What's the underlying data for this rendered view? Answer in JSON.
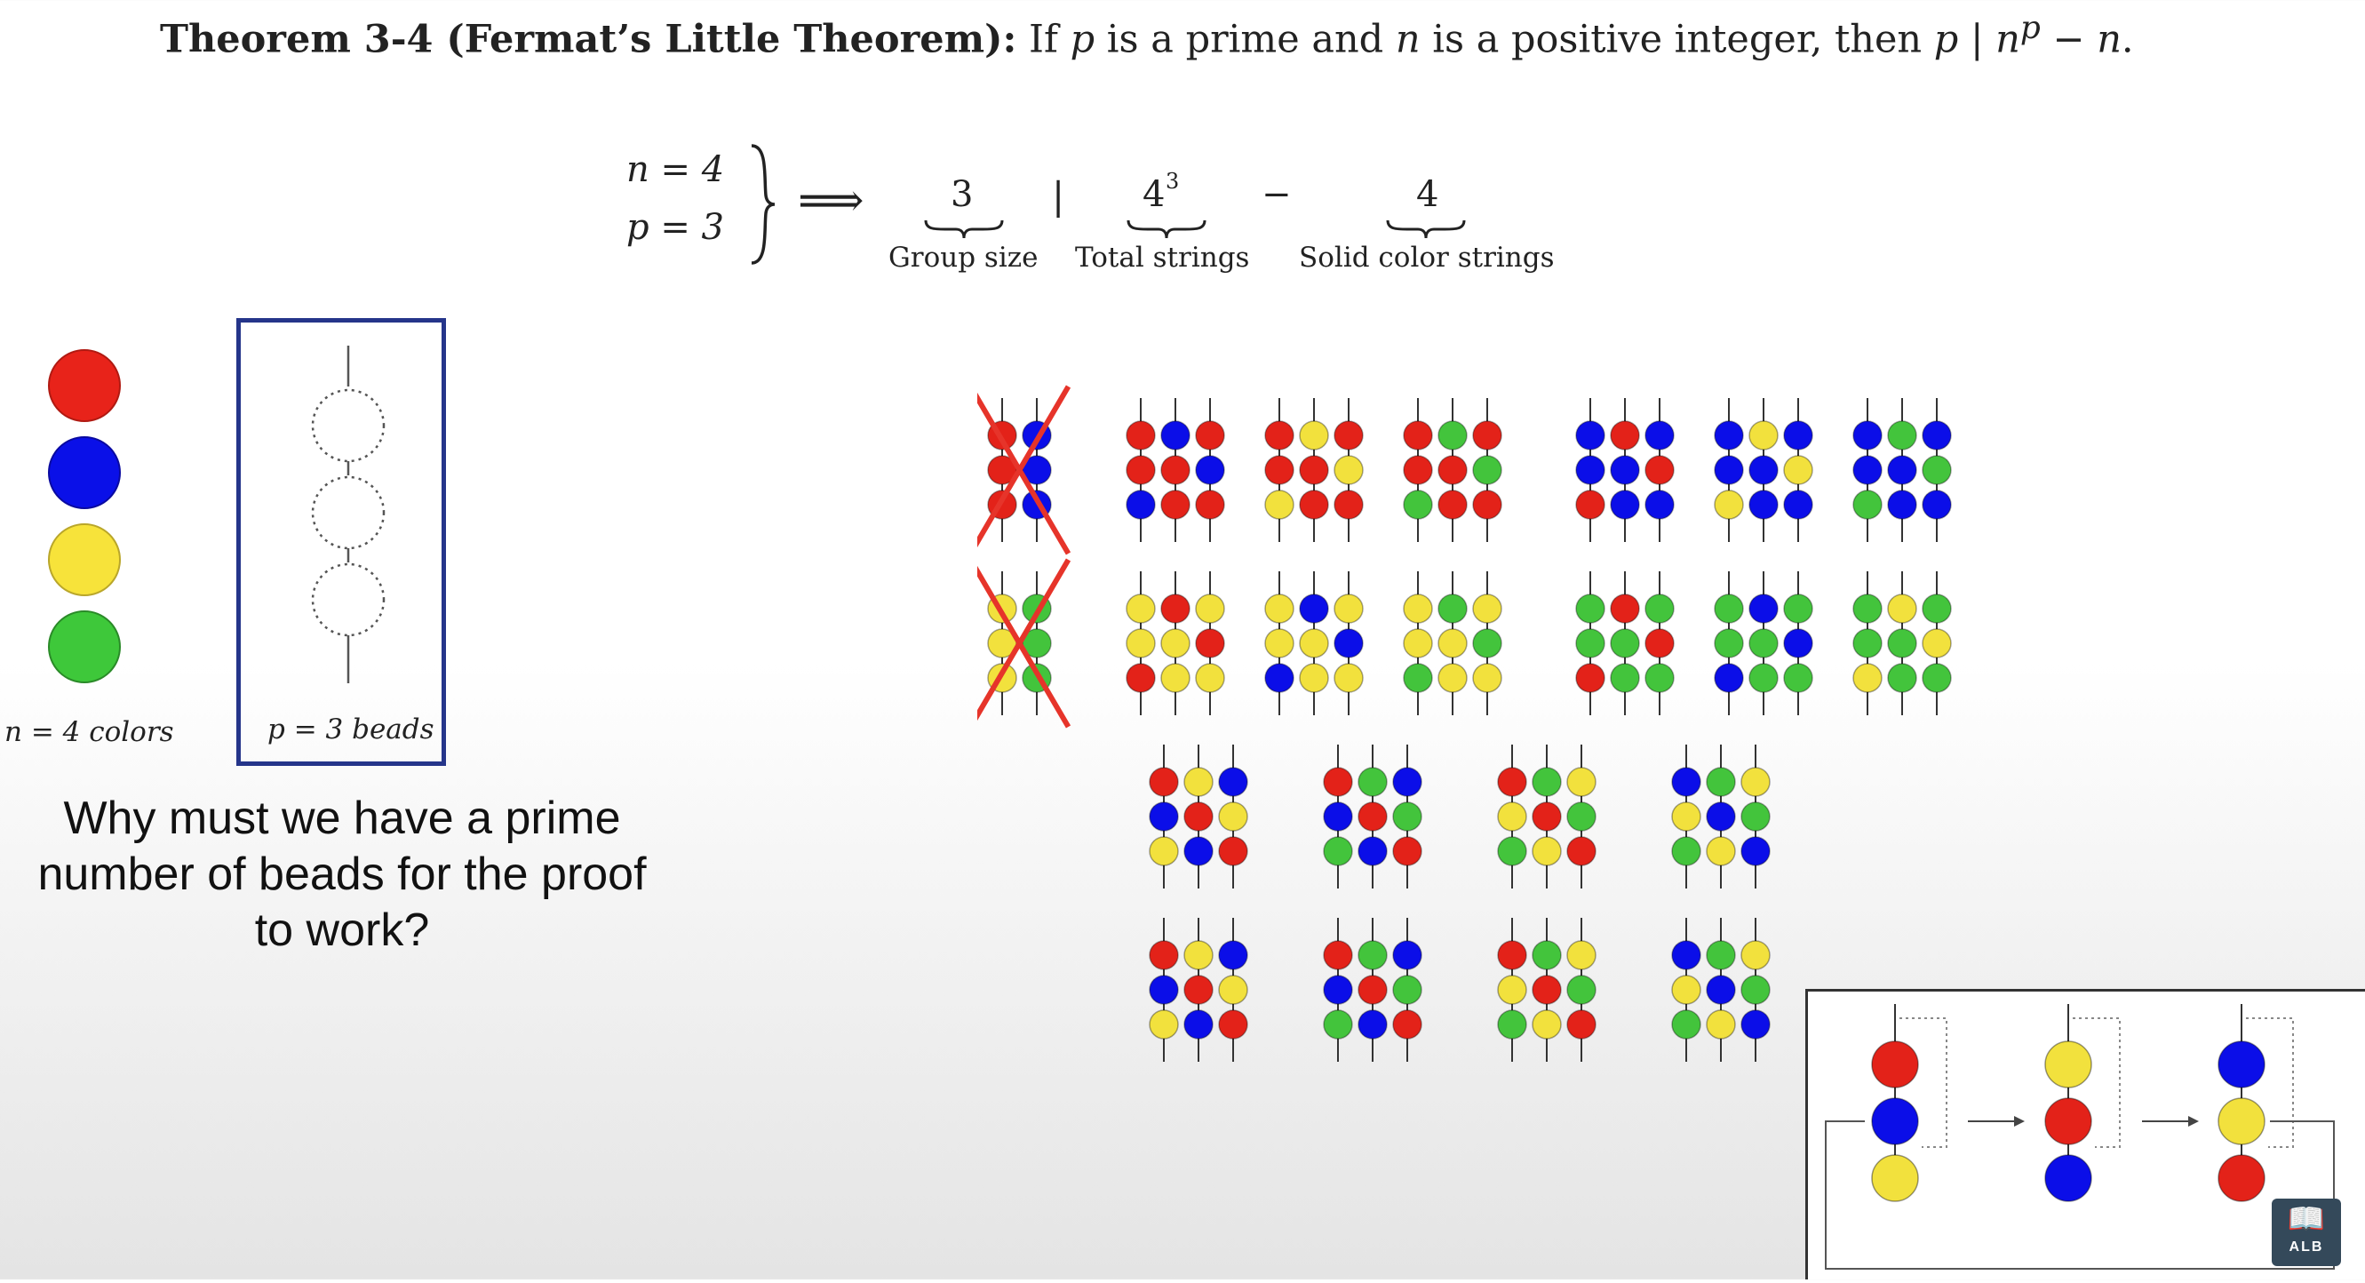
{
  "theorem": {
    "title": "Theorem 3-4 (Fermat’s Little Theorem):",
    "t1": "If",
    "p1": "p",
    "t2": "is a prime and",
    "n1": "n",
    "t3": "is a positive integer, then",
    "p2": "p",
    "bar": "|",
    "n2": "n",
    "sup": "p",
    "minus": "−",
    "n3": "n",
    "end": "."
  },
  "formula": {
    "n_eq": "n = 4",
    "p_eq": "p = 3",
    "implies": "⟹",
    "group_size_value": "3",
    "group_size_label": "Group size",
    "divides": "|",
    "total_base": "4",
    "total_exp": "3",
    "total_label": "Total strings",
    "minus": "−",
    "solid_value": "4",
    "solid_label": "Solid color strings"
  },
  "legend": {
    "colors_label": "n = 4 colors",
    "beads_label": "p = 3 beads",
    "palette": [
      "#e8231a",
      "#0a10e8",
      "#f7e33a",
      "#3ec83a"
    ]
  },
  "question": {
    "text": "Why must we have a prime number of beads for the proof to work?"
  },
  "bead_colors": {
    "R": "#e32219",
    "B": "#0b0ee8",
    "Y": "#f2e13d",
    "G": "#43c43c"
  },
  "bead_groups": [
    {
      "crossed": true,
      "strings": [
        [
          "R",
          "R",
          "R"
        ],
        [
          "B",
          "B",
          "B"
        ]
      ]
    },
    {
      "crossed": false,
      "strings": [
        [
          "R",
          "R",
          "B"
        ],
        [
          "B",
          "R",
          "R"
        ],
        [
          "R",
          "B",
          "R"
        ]
      ]
    },
    {
      "crossed": false,
      "strings": [
        [
          "R",
          "R",
          "Y"
        ],
        [
          "Y",
          "R",
          "R"
        ],
        [
          "R",
          "Y",
          "R"
        ]
      ]
    },
    {
      "crossed": false,
      "strings": [
        [
          "R",
          "R",
          "G"
        ],
        [
          "G",
          "R",
          "R"
        ],
        [
          "R",
          "G",
          "R"
        ]
      ]
    },
    {
      "crossed": false,
      "strings": [
        [
          "B",
          "B",
          "R"
        ],
        [
          "R",
          "B",
          "B"
        ],
        [
          "B",
          "R",
          "B"
        ]
      ]
    },
    {
      "crossed": false,
      "strings": [
        [
          "B",
          "B",
          "Y"
        ],
        [
          "Y",
          "B",
          "B"
        ],
        [
          "B",
          "Y",
          "B"
        ]
      ]
    },
    {
      "crossed": false,
      "strings": [
        [
          "B",
          "B",
          "G"
        ],
        [
          "G",
          "B",
          "B"
        ],
        [
          "B",
          "G",
          "B"
        ]
      ]
    },
    {
      "crossed": true,
      "strings": [
        [
          "Y",
          "Y",
          "Y"
        ],
        [
          "G",
          "G",
          "G"
        ]
      ]
    },
    {
      "crossed": false,
      "strings": [
        [
          "Y",
          "Y",
          "R"
        ],
        [
          "R",
          "Y",
          "Y"
        ],
        [
          "Y",
          "R",
          "Y"
        ]
      ]
    },
    {
      "crossed": false,
      "strings": [
        [
          "Y",
          "Y",
          "B"
        ],
        [
          "B",
          "Y",
          "Y"
        ],
        [
          "Y",
          "B",
          "Y"
        ]
      ]
    },
    {
      "crossed": false,
      "strings": [
        [
          "Y",
          "Y",
          "G"
        ],
        [
          "G",
          "Y",
          "Y"
        ],
        [
          "Y",
          "G",
          "Y"
        ]
      ]
    },
    {
      "crossed": false,
      "strings": [
        [
          "G",
          "G",
          "R"
        ],
        [
          "R",
          "G",
          "G"
        ],
        [
          "G",
          "R",
          "G"
        ]
      ]
    },
    {
      "crossed": false,
      "strings": [
        [
          "G",
          "G",
          "B"
        ],
        [
          "B",
          "G",
          "G"
        ],
        [
          "G",
          "B",
          "G"
        ]
      ]
    },
    {
      "crossed": false,
      "strings": [
        [
          "G",
          "G",
          "Y"
        ],
        [
          "Y",
          "G",
          "G"
        ],
        [
          "G",
          "Y",
          "G"
        ]
      ]
    },
    {
      "crossed": false,
      "strings": [
        [
          "R",
          "B",
          "Y"
        ],
        [
          "Y",
          "R",
          "B"
        ],
        [
          "B",
          "Y",
          "R"
        ]
      ]
    },
    {
      "crossed": false,
      "strings": [
        [
          "R",
          "B",
          "G"
        ],
        [
          "G",
          "R",
          "B"
        ],
        [
          "B",
          "G",
          "R"
        ]
      ]
    },
    {
      "crossed": false,
      "strings": [
        [
          "R",
          "Y",
          "G"
        ],
        [
          "G",
          "R",
          "Y"
        ],
        [
          "Y",
          "G",
          "R"
        ]
      ]
    },
    {
      "crossed": false,
      "strings": [
        [
          "B",
          "Y",
          "G"
        ],
        [
          "G",
          "B",
          "Y"
        ],
        [
          "Y",
          "G",
          "B"
        ]
      ]
    },
    {
      "crossed": false,
      "strings": [
        [
          "R",
          "B",
          "Y"
        ],
        [
          "Y",
          "R",
          "B"
        ],
        [
          "B",
          "Y",
          "R"
        ]
      ]
    },
    {
      "crossed": false,
      "strings": [
        [
          "R",
          "B",
          "G"
        ],
        [
          "G",
          "R",
          "B"
        ],
        [
          "B",
          "G",
          "R"
        ]
      ]
    },
    {
      "crossed": false,
      "strings": [
        [
          "R",
          "Y",
          "G"
        ],
        [
          "G",
          "R",
          "Y"
        ],
        [
          "Y",
          "G",
          "R"
        ]
      ]
    },
    {
      "crossed": false,
      "strings": [
        [
          "B",
          "Y",
          "G"
        ],
        [
          "G",
          "B",
          "Y"
        ],
        [
          "Y",
          "G",
          "B"
        ]
      ]
    }
  ],
  "rotation_strings": [
    [
      "R",
      "B",
      "Y"
    ],
    [
      "Y",
      "R",
      "B"
    ],
    [
      "B",
      "Y",
      "R"
    ]
  ],
  "logo": {
    "icon": "book-icon",
    "text": "ALB"
  }
}
